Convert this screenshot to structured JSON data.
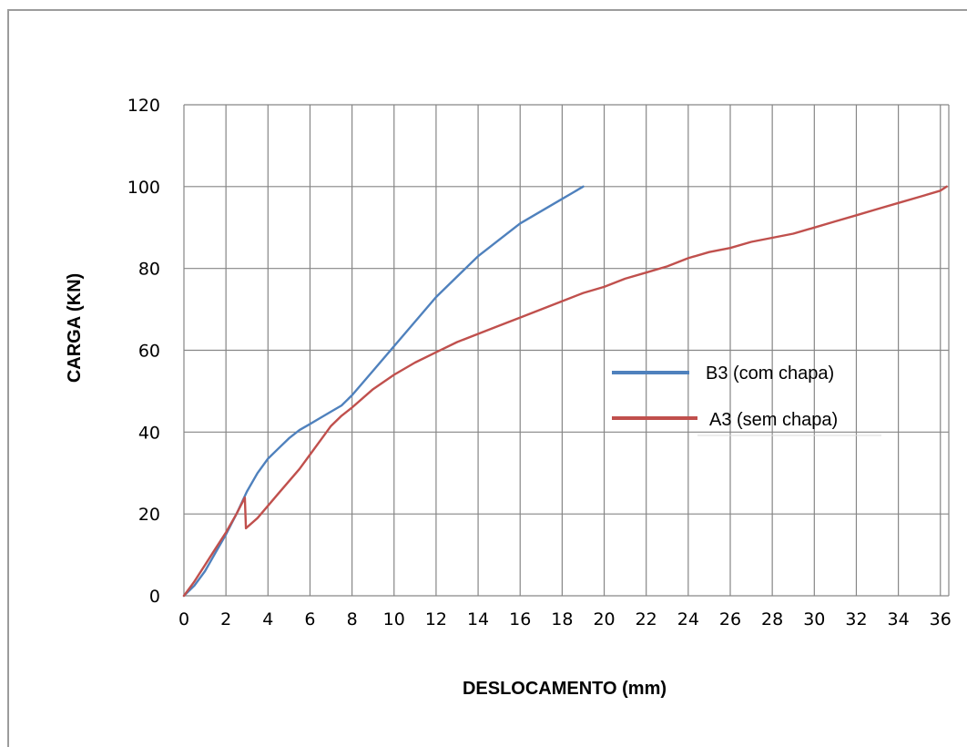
{
  "chart_data": {
    "type": "line",
    "xlabel": "DESLOCAMENTO (mm)",
    "ylabel": "CARGA (KN)",
    "xlim": [
      0,
      36.4
    ],
    "ylim": [
      0,
      120
    ],
    "x_ticks": [
      0,
      2,
      4,
      6,
      8,
      10,
      12,
      14,
      16,
      18,
      20,
      22,
      24,
      26,
      28,
      30,
      32,
      34,
      36
    ],
    "y_ticks": [
      0,
      20,
      40,
      60,
      80,
      100,
      120
    ],
    "grid": true,
    "legend_position": "right",
    "series": [
      {
        "name": "B3 (com chapa)",
        "color": "#4f81bd",
        "x": [
          0,
          0.5,
          1,
          1.5,
          2,
          2.5,
          3,
          3.5,
          4,
          4.5,
          5,
          5.5,
          6,
          6.5,
          7,
          7.5,
          8,
          9,
          10,
          11,
          12,
          13,
          14,
          15,
          16,
          17,
          18,
          18.5,
          19
        ],
        "y": [
          0,
          2.5,
          6,
          10.5,
          15,
          20,
          25.5,
          30,
          33.5,
          36,
          38.5,
          40.5,
          42,
          43.5,
          45,
          46.5,
          49,
          55,
          61,
          67,
          73,
          78,
          83,
          87,
          91,
          94,
          97,
          98.5,
          100
        ]
      },
      {
        "name": "A3 (sem chapa)",
        "color": "#c0504d",
        "x": [
          0,
          0.5,
          1,
          1.5,
          2,
          2.5,
          2.9,
          2.95,
          3.5,
          4,
          4.5,
          5,
          5.5,
          6,
          6.5,
          7,
          7.5,
          8,
          9,
          10,
          11,
          12,
          13,
          14,
          15,
          16,
          17,
          18,
          19,
          20,
          21,
          22,
          23,
          24,
          25,
          26,
          27,
          28,
          29,
          30,
          31,
          32,
          33,
          34,
          35,
          36,
          36.3
        ],
        "y": [
          0,
          3.5,
          7.5,
          11.5,
          15.5,
          20,
          24,
          16.5,
          19,
          22,
          25,
          28,
          31,
          34.5,
          38,
          41.5,
          44,
          46,
          50.5,
          54,
          57,
          59.5,
          62,
          64,
          66,
          68,
          70,
          72,
          74,
          75.5,
          77.5,
          79,
          80.5,
          82.5,
          84,
          85,
          86.5,
          87.5,
          88.5,
          90,
          91.5,
          93,
          94.5,
          96,
          97.5,
          99,
          100
        ]
      }
    ]
  }
}
